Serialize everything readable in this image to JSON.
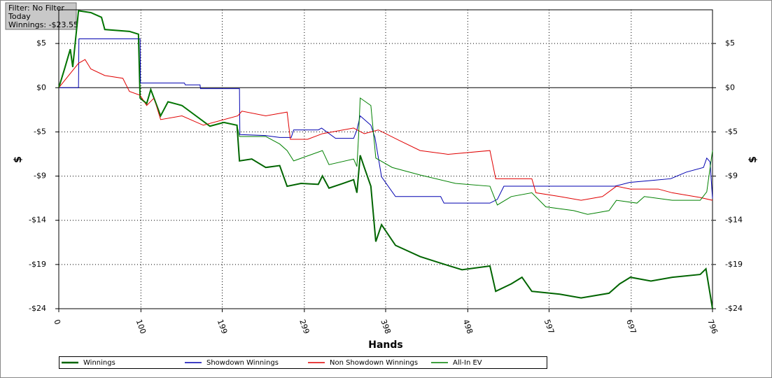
{
  "filter": {
    "lines": [
      "Filter: No Filter",
      "Today",
      "Winnings: -$23.55"
    ]
  },
  "chart_data": {
    "type": "line",
    "xlabel": "Hands",
    "ylabel": "$",
    "xlim": [
      0,
      796
    ],
    "xticks": [
      0,
      100,
      199,
      299,
      398,
      498,
      597,
      697,
      796
    ],
    "ylim": [
      -23.55,
      8.3
    ],
    "yticks": [
      {
        "value": 4.71,
        "label": "$5"
      },
      {
        "value": 0,
        "label": "$0"
      },
      {
        "value": -4.71,
        "label": "-$5"
      },
      {
        "value": -9.42,
        "label": "-$9"
      },
      {
        "value": -14.13,
        "label": "-$14"
      },
      {
        "value": -18.84,
        "label": "-$19"
      },
      {
        "value": -23.55,
        "label": "-$24"
      }
    ],
    "grid": true,
    "legend": "bottom",
    "series": [
      {
        "name": "Winnings",
        "color": "#006400",
        "width": 2,
        "x": [
          0,
          7,
          14,
          17,
          24,
          39,
          52,
          56,
          86,
          97,
          99,
          107,
          112,
          124,
          133,
          150,
          167,
          184,
          201,
          217,
          220,
          235,
          252,
          269,
          278,
          295,
          316,
          321,
          329,
          346,
          359,
          363,
          367,
          372,
          380,
          386,
          393,
          410,
          440,
          465,
          491,
          525,
          532,
          551,
          564,
          576,
          610,
          636,
          670,
          683,
          696,
          721,
          747,
          781,
          788,
          796
        ],
        "values": [
          0,
          2.0,
          4.1,
          2.2,
          8.2,
          8.0,
          7.5,
          6.2,
          6.0,
          5.7,
          -1.1,
          -1.7,
          -0.2,
          -3.0,
          -1.5,
          -1.9,
          -3.0,
          -4.1,
          -3.7,
          -4.0,
          -7.8,
          -7.6,
          -8.5,
          -8.3,
          -10.5,
          -10.2,
          -10.3,
          -9.4,
          -10.7,
          -10.2,
          -9.8,
          -11.2,
          -7.2,
          -8.5,
          -10.5,
          -16.4,
          -14.6,
          -16.8,
          -18.0,
          -18.7,
          -19.4,
          -19.0,
          -21.7,
          -20.9,
          -20.2,
          -21.7,
          -22.0,
          -22.4,
          -21.9,
          -20.9,
          -20.2,
          -20.6,
          -20.2,
          -19.9,
          -19.3,
          -23.55
        ]
      },
      {
        "name": "Showdown Winnings",
        "color": "#0000b0",
        "width": 1,
        "x": [
          0,
          24,
          24.5,
          99,
          99.5,
          153,
          154,
          172,
          172.5,
          220,
          220.5,
          252,
          269,
          283,
          286,
          316,
          320,
          337,
          359,
          363,
          367,
          380,
          385,
          393,
          410,
          465,
          469,
          525,
          534,
          542,
          677,
          695,
          720,
          745,
          764,
          785,
          789,
          793,
          796
        ],
        "values": [
          0,
          0,
          5.2,
          5.2,
          0.5,
          0.5,
          0.3,
          0.3,
          -0.1,
          -0.1,
          -5.0,
          -5.1,
          -5.3,
          -5.3,
          -4.5,
          -4.5,
          -4.3,
          -5.4,
          -5.4,
          -4.5,
          -3.0,
          -4.0,
          -5.3,
          -9.5,
          -11.6,
          -11.6,
          -12.3,
          -12.3,
          -11.9,
          -10.5,
          -10.5,
          -10.1,
          -9.9,
          -9.7,
          -9.0,
          -8.5,
          -7.5,
          -7.9,
          -11.8
        ]
      },
      {
        "name": "Non Showdown Winnings",
        "color": "#e00000",
        "width": 1,
        "x": [
          0,
          24,
          32,
          39,
          56,
          78,
          86,
          99,
          107,
          116,
          124,
          150,
          176,
          218,
          223,
          252,
          278,
          282,
          303,
          321,
          359,
          372,
          389,
          414,
          440,
          474,
          525,
          532,
          576,
          581,
          610,
          636,
          662,
          679,
          696,
          730,
          747,
          781,
          796
        ],
        "values": [
          0,
          2.6,
          3.0,
          2.0,
          1.3,
          1.0,
          -0.4,
          -0.8,
          -1.9,
          -1.1,
          -3.4,
          -3.0,
          -4.0,
          -3.0,
          -2.5,
          -3.0,
          -2.6,
          -5.5,
          -5.5,
          -4.9,
          -4.3,
          -4.9,
          -4.5,
          -5.6,
          -6.7,
          -7.1,
          -6.7,
          -9.7,
          -9.7,
          -11.2,
          -11.6,
          -12.0,
          -11.6,
          -10.5,
          -10.8,
          -10.8,
          -11.2,
          -11.7,
          -12.0
        ]
      },
      {
        "name": "All-In EV",
        "color": "#008000",
        "width": 1,
        "x": [
          0,
          7,
          14,
          17,
          24,
          39,
          52,
          56,
          86,
          97,
          99,
          107,
          112,
          124,
          133,
          150,
          167,
          184,
          201,
          217,
          220,
          252,
          269,
          278,
          286,
          321,
          329,
          359,
          363,
          365,
          367,
          380,
          386,
          406,
          440,
          483,
          525,
          534,
          551,
          576,
          593,
          627,
          644,
          670,
          679,
          704,
          713,
          747,
          781,
          789,
          796
        ],
        "values": [
          0,
          2.0,
          4.1,
          2.2,
          8.2,
          8.0,
          7.5,
          6.2,
          6.0,
          5.7,
          -1.1,
          -1.7,
          -0.2,
          -3.0,
          -1.5,
          -1.9,
          -3.0,
          -4.1,
          -3.7,
          -4.0,
          -5.2,
          -5.2,
          -6.0,
          -6.7,
          -7.8,
          -6.7,
          -8.2,
          -7.6,
          -8.4,
          -5.2,
          -1.1,
          -1.9,
          -7.5,
          -8.5,
          -9.3,
          -10.2,
          -10.5,
          -12.5,
          -11.6,
          -11.2,
          -12.7,
          -13.1,
          -13.5,
          -13.1,
          -12.0,
          -12.3,
          -11.6,
          -12.0,
          -12.0,
          -11.1,
          -6.7
        ]
      }
    ]
  }
}
